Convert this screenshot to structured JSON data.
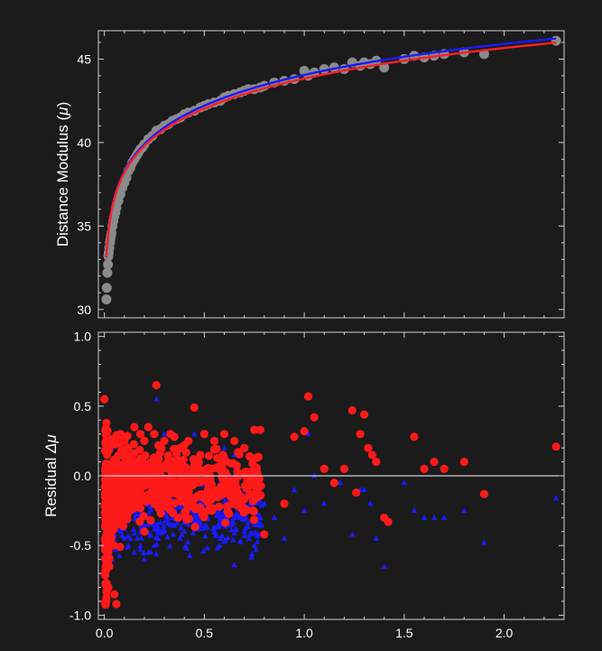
{
  "chart_data": [
    {
      "type": "scatter",
      "panel": "top",
      "title": "",
      "xlabel": "",
      "ylabel": "Distance Modulus (μ)",
      "ylabel_parts": [
        "Distance Modulus (",
        "μ",
        ")"
      ],
      "xlim": [
        -0.03,
        2.3
      ],
      "ylim": [
        29.5,
        46.7
      ],
      "yticks": [
        30,
        35,
        40,
        45
      ],
      "grid": false,
      "data_color": "#8a8a8a",
      "model_colors": {
        "model_a": "#1a1aff",
        "model_b": "#ff2020"
      },
      "series": [
        {
          "kind": "points",
          "z": [
            0.01,
            0.012,
            0.015,
            0.018,
            0.02,
            0.022,
            0.025,
            0.028,
            0.03,
            0.033,
            0.036,
            0.04,
            0.045,
            0.05,
            0.055,
            0.06,
            0.07,
            0.08,
            0.09,
            0.1,
            0.11,
            0.12,
            0.13,
            0.14,
            0.15,
            0.16,
            0.17,
            0.18,
            0.19,
            0.2,
            0.22,
            0.24,
            0.26,
            0.28,
            0.3,
            0.32,
            0.34,
            0.36,
            0.38,
            0.4,
            0.42,
            0.45,
            0.48,
            0.5,
            0.52,
            0.55,
            0.58,
            0.6,
            0.62,
            0.65,
            0.68,
            0.7,
            0.72,
            0.75,
            0.78,
            0.8,
            0.85,
            0.9,
            0.95,
            1.0,
            1.02,
            1.05,
            1.1,
            1.15,
            1.2,
            1.24,
            1.28,
            1.3,
            1.33,
            1.36,
            1.4,
            1.5,
            1.55,
            1.6,
            1.65,
            1.7,
            1.8,
            1.9,
            2.26
          ],
          "mu": [
            30.6,
            31.3,
            32.2,
            32.7,
            33.2,
            33.4,
            33.7,
            34.0,
            34.2,
            34.4,
            34.6,
            35.0,
            35.3,
            35.6,
            35.8,
            36.1,
            36.5,
            36.9,
            37.3,
            37.6,
            37.9,
            38.3,
            38.5,
            38.8,
            39.0,
            39.2,
            39.4,
            39.6,
            39.7,
            39.9,
            40.2,
            40.4,
            40.7,
            40.8,
            41.0,
            41.1,
            41.3,
            41.4,
            41.5,
            41.7,
            41.8,
            41.9,
            42.1,
            42.2,
            42.3,
            42.4,
            42.5,
            42.7,
            42.8,
            42.9,
            43.0,
            43.1,
            43.2,
            43.2,
            43.3,
            43.4,
            43.6,
            43.7,
            43.8,
            44.3,
            44.0,
            44.2,
            44.4,
            44.5,
            44.4,
            44.8,
            44.6,
            44.8,
            44.7,
            44.9,
            44.5,
            45.0,
            45.2,
            45.1,
            45.2,
            45.3,
            45.4,
            45.3,
            46.1
          ]
        },
        {
          "name": "",
          "kind": "curve",
          "model": "model_a",
          "z_range": [
            0.01,
            2.26
          ]
        },
        {
          "name": "",
          "kind": "curve",
          "model": "model_b",
          "z_range": [
            0.01,
            2.26
          ]
        }
      ]
    },
    {
      "type": "scatter",
      "panel": "bottom",
      "title": "",
      "xlabel": "",
      "ylabel": "Residual Δμ",
      "ylabel_parts": [
        "Residual ",
        "Δμ"
      ],
      "xlim": [
        -0.03,
        2.3
      ],
      "ylim": [
        -1.03,
        1.03
      ],
      "xticks": [
        "0.0",
        "0.5",
        "1.0",
        "1.5",
        "2.0"
      ],
      "xtick_values": [
        0,
        0.5,
        1.0,
        1.5,
        2.0
      ],
      "yticks": [
        "1.0",
        "0.5",
        "0.0",
        "-0.5",
        "-1.0"
      ],
      "ytick_values": [
        1.0,
        0.5,
        0.0,
        -0.5,
        -1.0
      ],
      "reference_line": 0,
      "grid": false,
      "series": [
        {
          "name": "",
          "marker": "triangle",
          "color": "#1a1aff",
          "z": [
            0.01,
            0.02,
            0.03,
            0.05,
            0.08,
            0.1,
            0.12,
            0.15,
            0.18,
            0.2,
            0.22,
            0.25,
            0.27,
            0.3,
            0.33,
            0.35,
            0.38,
            0.4,
            0.42,
            0.45,
            0.48,
            0.5,
            0.52,
            0.55,
            0.58,
            0.6,
            0.62,
            0.65,
            0.68,
            0.7,
            0.72,
            0.75,
            0.78,
            0.8,
            0.85,
            0.9,
            0.95,
            1.0,
            1.02,
            1.05,
            1.1,
            1.18,
            1.24,
            1.28,
            1.3,
            1.33,
            1.36,
            1.4,
            1.5,
            1.55,
            1.6,
            1.65,
            1.7,
            1.8,
            1.9,
            2.26,
            0.26,
            0.3,
            0.45,
            0.6,
            0.65,
            0.75
          ],
          "residual": [
            -0.35,
            -0.4,
            -0.5,
            -0.45,
            -0.4,
            -0.45,
            -0.5,
            -0.55,
            -0.5,
            -0.6,
            -0.55,
            -0.5,
            -0.45,
            -0.4,
            -0.35,
            -0.3,
            -0.45,
            -0.4,
            -0.35,
            -0.3,
            -0.35,
            -0.3,
            -0.25,
            -0.4,
            -0.3,
            -0.35,
            -0.28,
            -0.64,
            -0.3,
            -0.4,
            -0.25,
            -0.35,
            -0.3,
            -0.2,
            -0.3,
            -0.45,
            -0.1,
            -0.25,
            0.3,
            0.0,
            -0.2,
            -0.05,
            -0.42,
            -0.1,
            -0.1,
            -0.2,
            -0.45,
            -0.65,
            -0.05,
            -0.25,
            -0.3,
            -0.3,
            -0.3,
            -0.25,
            -0.48,
            -0.16,
            0.55,
            0.3,
            0.3,
            0.2,
            0.15,
            -0.5
          ]
        },
        {
          "name": "",
          "marker": "circle",
          "color": "#ff1a1a",
          "z": [
            0.0,
            0.01,
            0.015,
            0.02,
            0.025,
            0.03,
            0.04,
            0.05,
            0.06,
            0.08,
            0.1,
            0.12,
            0.15,
            0.18,
            0.2,
            0.22,
            0.25,
            0.26,
            0.3,
            0.33,
            0.35,
            0.38,
            0.4,
            0.42,
            0.45,
            0.48,
            0.5,
            0.55,
            0.6,
            0.65,
            0.7,
            0.75,
            0.78,
            0.8,
            0.9,
            0.95,
            1.0,
            1.02,
            1.05,
            1.1,
            1.15,
            1.2,
            1.24,
            1.26,
            1.28,
            1.3,
            1.32,
            1.34,
            1.36,
            1.4,
            1.42,
            1.55,
            1.6,
            1.65,
            1.7,
            1.8,
            1.9,
            2.26,
            0.03,
            0.06,
            0.2,
            0.4,
            0.45
          ],
          "residual": [
            0.55,
            0.38,
            -0.6,
            -0.8,
            -0.65,
            -0.45,
            -0.5,
            -0.85,
            -0.92,
            0.3,
            0.25,
            0.2,
            0.35,
            0.3,
            0.25,
            0.35,
            0.3,
            0.65,
            0.25,
            0.3,
            0.28,
            0.2,
            0.22,
            0.25,
            0.49,
            0.15,
            0.3,
            0.25,
            0.3,
            0.25,
            0.2,
            0.33,
            0.33,
            -0.42,
            -0.2,
            0.28,
            0.32,
            0.57,
            0.42,
            0.05,
            -0.05,
            0.05,
            0.47,
            -0.12,
            0.3,
            0.44,
            0.2,
            0.15,
            0.1,
            -0.3,
            -0.33,
            0.28,
            0.05,
            0.1,
            0.05,
            0.1,
            -0.13,
            0.21,
            -0.2,
            -0.35,
            -0.4,
            -0.05,
            0.1
          ]
        }
      ]
    }
  ]
}
